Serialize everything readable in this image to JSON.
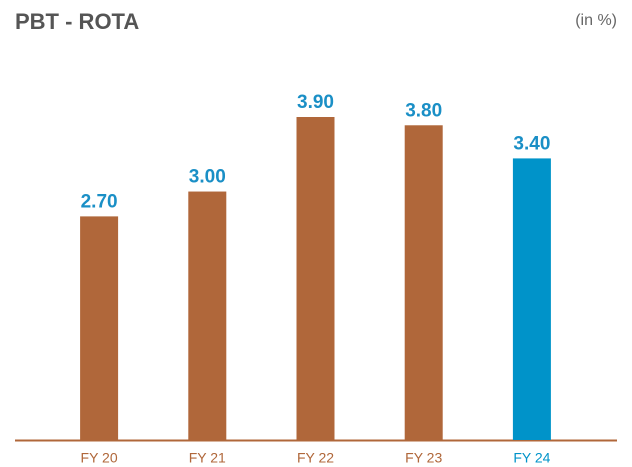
{
  "chart_data": {
    "type": "bar",
    "title": "PBT - ROTA",
    "subtitle": "(in %)",
    "categories": [
      "FY 20",
      "FY 21",
      "FY 22",
      "FY 23",
      "FY 24"
    ],
    "values": [
      2.7,
      3.0,
      3.9,
      3.8,
      3.4
    ],
    "value_labels": [
      "2.70",
      "3.00",
      "3.90",
      "3.80",
      "3.40"
    ],
    "colors": [
      "#b0673a",
      "#b0673a",
      "#b0673a",
      "#b0673a",
      "#0093c9"
    ],
    "label_color": "#1a8fc6"
  }
}
